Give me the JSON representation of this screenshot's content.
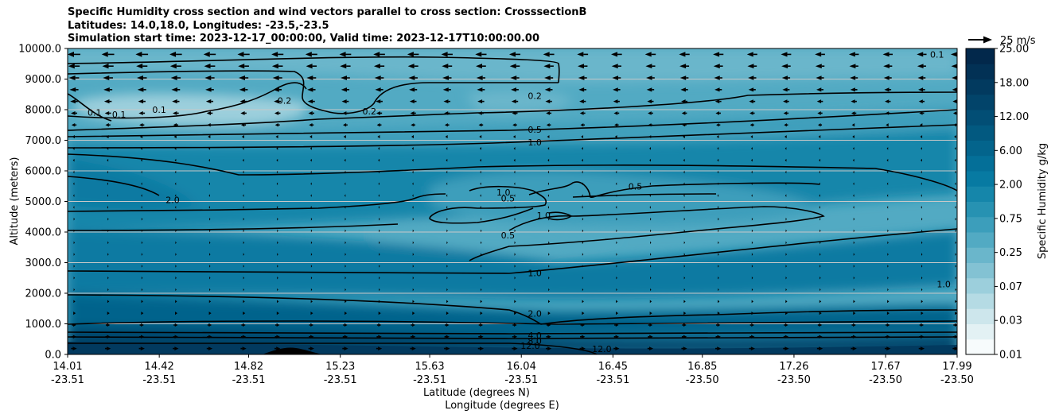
{
  "title": {
    "line1": "Specific Humidity cross section and wind vectors parallel to cross section: CrosssectionB",
    "line2": "Latitudes: 14.0,18.0, Longitudes: -23.5,-23.5",
    "line3": "Simulation start time: 2023-12-17_00:00:00, Valid time: 2023-12-17T10:00:00.00"
  },
  "chart_data": {
    "type": "heatmap",
    "ylabel": "Altitude (meters)",
    "xlabel": "Latitude (degrees N)",
    "xlabel2": "Longitude (degrees E)",
    "ylim": [
      0,
      10000
    ],
    "yticks": [
      "0.0",
      "1000.0",
      "2000.0",
      "3000.0",
      "4000.0",
      "5000.0",
      "6000.0",
      "7000.0",
      "8000.0",
      "9000.0",
      "10000.0"
    ],
    "xlim": [
      14.01,
      17.99
    ],
    "xticks": [
      {
        "lat": "14.01",
        "lon": "-23.51"
      },
      {
        "lat": "14.42",
        "lon": "-23.51"
      },
      {
        "lat": "14.82",
        "lon": "-23.51"
      },
      {
        "lat": "15.23",
        "lon": "-23.51"
      },
      {
        "lat": "15.63",
        "lon": "-23.51"
      },
      {
        "lat": "16.04",
        "lon": "-23.51"
      },
      {
        "lat": "16.45",
        "lon": "-23.51"
      },
      {
        "lat": "16.85",
        "lon": "-23.50"
      },
      {
        "lat": "17.26",
        "lon": "-23.50"
      },
      {
        "lat": "17.67",
        "lon": "-23.50"
      },
      {
        "lat": "17.99",
        "lon": "-23.50"
      }
    ],
    "grid": "horizontal",
    "colorbar": {
      "label": "Specific Humidity g/kg",
      "ticks": [
        "0.01",
        "0.03",
        "0.07",
        "0.25",
        "0.75",
        "2.00",
        "6.00",
        "12.00",
        "18.00",
        "25.00"
      ],
      "colors": [
        "#f7fbfc",
        "#e3f1f4",
        "#cde6ec",
        "#b5dbe4",
        "#9ccfdc",
        "#83c2d3",
        "#6ab6cb",
        "#52aac3",
        "#3c9ebb",
        "#2792b2",
        "#1586aa",
        "#077aa2",
        "#046f98",
        "#03648c",
        "#025980",
        "#024e75",
        "#02446a",
        "#023a5f",
        "#023155",
        "#02284b"
      ]
    },
    "quiver_key": {
      "label": "25 m/s"
    },
    "contour_labels": [
      {
        "text": "0.1",
        "x": 14.13,
        "y": 7910
      },
      {
        "text": "0.1",
        "x": 14.24,
        "y": 7850
      },
      {
        "text": "0.1",
        "x": 14.42,
        "y": 8000
      },
      {
        "text": "0.2",
        "x": 14.98,
        "y": 8300
      },
      {
        "text": "0.2",
        "x": 15.36,
        "y": 7950
      },
      {
        "text": "0.2",
        "x": 16.1,
        "y": 8450
      },
      {
        "text": "0.5",
        "x": 16.1,
        "y": 7350
      },
      {
        "text": "1.0",
        "x": 16.1,
        "y": 6930
      },
      {
        "text": "2.0",
        "x": 14.48,
        "y": 5050
      },
      {
        "text": "1.0",
        "x": 15.96,
        "y": 5300
      },
      {
        "text": "0.5",
        "x": 15.98,
        "y": 5100
      },
      {
        "text": "0.5",
        "x": 16.55,
        "y": 5500
      },
      {
        "text": "1.0",
        "x": 16.14,
        "y": 4550
      },
      {
        "text": "0.5",
        "x": 15.98,
        "y": 3900
      },
      {
        "text": "1.0",
        "x": 16.1,
        "y": 2660
      },
      {
        "text": "1.0",
        "x": 17.93,
        "y": 2300
      },
      {
        "text": "2.0",
        "x": 16.1,
        "y": 1340
      },
      {
        "text": "4.0",
        "x": 16.1,
        "y": 620
      },
      {
        "text": "8.0",
        "x": 16.1,
        "y": 440
      },
      {
        "text": "12.0",
        "x": 16.08,
        "y": 280
      },
      {
        "text": "12.0",
        "x": 16.4,
        "y": 180
      },
      {
        "text": "0.1",
        "x": 17.9,
        "y": 9800
      }
    ]
  }
}
